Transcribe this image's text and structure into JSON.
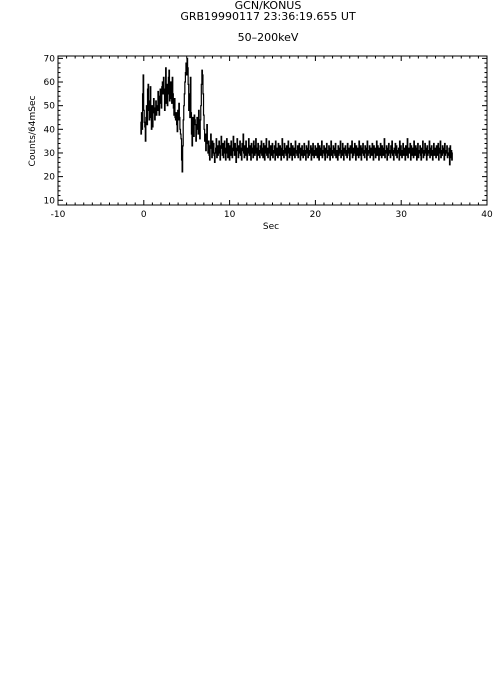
{
  "header": {
    "line1": "GCN/KONUS",
    "line2": "GRB19990117 23:36:19.655 UT",
    "band": "50–200keV"
  },
  "chart_data": {
    "type": "line",
    "title": "GRB19990117 23:36:19.655 UT",
    "subtitle": "50–200keV",
    "xlabel": "Sec",
    "ylabel": "Counts/64mSec",
    "xlim": [
      -10,
      40
    ],
    "ylim": [
      8,
      71
    ],
    "xticks": [
      -10,
      0,
      10,
      20,
      30,
      40
    ],
    "yticks": [
      10,
      20,
      30,
      40,
      50,
      60,
      70
    ],
    "grid": false,
    "series": [
      {
        "name": "",
        "x_start": -0.4,
        "x_step": 0.064,
        "values": [
          43,
          38,
          47,
          40,
          55,
          63,
          48,
          43,
          41,
          35,
          45,
          50,
          42,
          57,
          59,
          48,
          44,
          52,
          58,
          45,
          40,
          50,
          41,
          48,
          53,
          47,
          44,
          49,
          52,
          46,
          50,
          48,
          56,
          54,
          46,
          51,
          57,
          53,
          49,
          58,
          60,
          55,
          62,
          57,
          48,
          53,
          66,
          51,
          59,
          50,
          55,
          62,
          65,
          52,
          56,
          60,
          53,
          51,
          62,
          55,
          49,
          46,
          53,
          45,
          44,
          47,
          42,
          39,
          48,
          44,
          51,
          45,
          40,
          38,
          36,
          27,
          22,
          33,
          44,
          50,
          55,
          60,
          64,
          68,
          63,
          70,
          66,
          59,
          48,
          55,
          45,
          62,
          47,
          38,
          33,
          45,
          40,
          37,
          46,
          44,
          42,
          35,
          40,
          45,
          43,
          38,
          48,
          42,
          36,
          44,
          50,
          59,
          65,
          63,
          55,
          46,
          40,
          35,
          38,
          31,
          37,
          42,
          34,
          30,
          35,
          29,
          27,
          33,
          38,
          32,
          28,
          35,
          30,
          34,
          29,
          26,
          30,
          32,
          36,
          28,
          33,
          29,
          31,
          35,
          30,
          27,
          33,
          37,
          32,
          29,
          34,
          28,
          30,
          35,
          31,
          27,
          32,
          36,
          30,
          28,
          34,
          31,
          27,
          33,
          29,
          35,
          32,
          28,
          31,
          37,
          33,
          29,
          34,
          30,
          26,
          32,
          36,
          31,
          28,
          33,
          30,
          35,
          29,
          32,
          27,
          34,
          31,
          38,
          30,
          28,
          33,
          29,
          35,
          31,
          27,
          32,
          30,
          36,
          29,
          33,
          31,
          27,
          34,
          30,
          32,
          28,
          35,
          31,
          29,
          33,
          36,
          30,
          27,
          32,
          34,
          29,
          31,
          28,
          33,
          30,
          35,
          29,
          32,
          28,
          34,
          31,
          27,
          33,
          30,
          36,
          29,
          32,
          28,
          31,
          35,
          30,
          27,
          33,
          29,
          32,
          34,
          28,
          31,
          30,
          33,
          27,
          35,
          29,
          32,
          30,
          28,
          34,
          31,
          29,
          33,
          30,
          27,
          32,
          36,
          29,
          31,
          28,
          34,
          30,
          32,
          29,
          33,
          27,
          31,
          35,
          30,
          28,
          32,
          29,
          34,
          31,
          27,
          33,
          30,
          29,
          32,
          28,
          35,
          30,
          31,
          29,
          33,
          28,
          31,
          34,
          30,
          27,
          32,
          29,
          33,
          31,
          28,
          30,
          34,
          29,
          31,
          27,
          33,
          30,
          32,
          28,
          35,
          29,
          31,
          30,
          33,
          27,
          32,
          29,
          34,
          31,
          28,
          30,
          33,
          29,
          32,
          30,
          28,
          34,
          31,
          27,
          33,
          30,
          29,
          32,
          35,
          28,
          31,
          30,
          33,
          29,
          27,
          32,
          30,
          34,
          28,
          31,
          29,
          33,
          30,
          27,
          32,
          35,
          29,
          31,
          28,
          33,
          30,
          32,
          29,
          34,
          28,
          31,
          30,
          27,
          33,
          29,
          32,
          30,
          35,
          28,
          31,
          29,
          34,
          30,
          27,
          32,
          30,
          33,
          29,
          31,
          28,
          34,
          30,
          32,
          29,
          27,
          33,
          31,
          30,
          35,
          28,
          32,
          29,
          31,
          34,
          30,
          27,
          33,
          29,
          32,
          30,
          28,
          35,
          31,
          29,
          33,
          27,
          32,
          30,
          34,
          29,
          31,
          28,
          33,
          30,
          32,
          27,
          35,
          29,
          31,
          30,
          33,
          28,
          32,
          30,
          29,
          34,
          31,
          27,
          33,
          30,
          32,
          28,
          31,
          35,
          29,
          33,
          30,
          27,
          32,
          29,
          34,
          31,
          28,
          33,
          30,
          29,
          32,
          36,
          28,
          31,
          30,
          33,
          27,
          32,
          29,
          34,
          30,
          31,
          28,
          33,
          30,
          35,
          29,
          31,
          27,
          32,
          30,
          34,
          29,
          33,
          28,
          31,
          30,
          32,
          27,
          35,
          29,
          33,
          30,
          28,
          31,
          34,
          29,
          32,
          30,
          27,
          33,
          31,
          29,
          36,
          28,
          32,
          30,
          31,
          34,
          27,
          33,
          29,
          30,
          32,
          28,
          35,
          31,
          29,
          33,
          30,
          27,
          32,
          34,
          28,
          31,
          30,
          33,
          29,
          27,
          32,
          30,
          35,
          28,
          31,
          29,
          34,
          30,
          32,
          27,
          33,
          29,
          31,
          30,
          35,
          28,
          32,
          29,
          33,
          30,
          27,
          31,
          34,
          29,
          32,
          30,
          28,
          33,
          31,
          29,
          34,
          27,
          32,
          30,
          35,
          28,
          31,
          29,
          33,
          30,
          32,
          27,
          34,
          29,
          31,
          30,
          33,
          28,
          30,
          29,
          32,
          25,
          33,
          28,
          31,
          27,
          30
        ]
      }
    ]
  }
}
